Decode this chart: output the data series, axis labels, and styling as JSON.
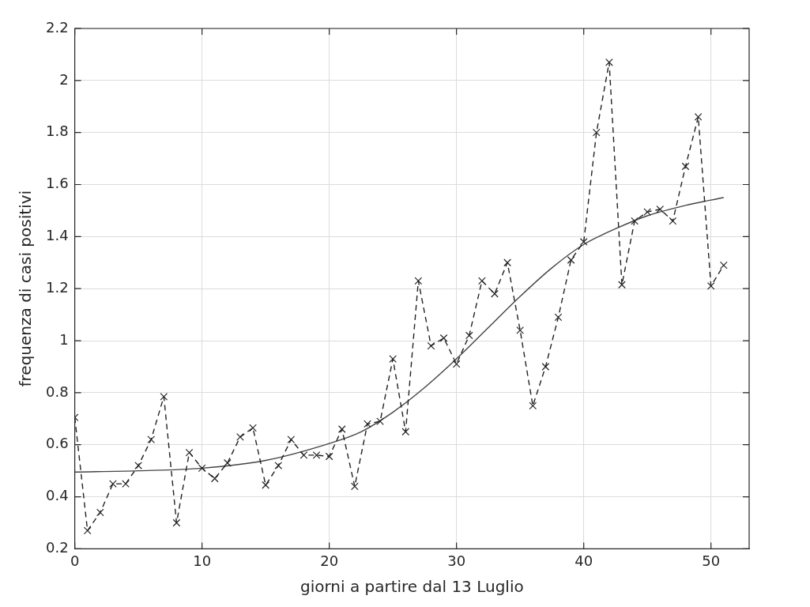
{
  "chart_data": {
    "type": "line",
    "xlabel": "giorni a partire dal 13 Luglio",
    "ylabel": "frequenza di casi positivi",
    "xlim": [
      0,
      53
    ],
    "xticks": [
      0,
      10,
      20,
      30,
      40,
      50
    ],
    "ylim": [
      0.2,
      2.2
    ],
    "yticks": [
      0.2,
      0.4,
      0.6,
      0.8,
      1,
      1.2,
      1.4,
      1.6,
      1.8,
      2,
      2.2
    ],
    "grid": true,
    "legend": false,
    "series": [
      {
        "color": "#222222",
        "marker": "cross",
        "line_style": "dashed",
        "x": [
          0,
          1,
          2,
          3,
          4,
          5,
          6,
          7,
          8,
          9,
          10,
          11,
          12,
          13,
          14,
          15,
          16,
          17,
          18,
          19,
          20,
          21,
          22,
          23,
          24,
          25,
          26,
          27,
          28,
          29,
          30,
          31,
          32,
          33,
          34,
          35,
          36,
          37,
          38,
          39,
          40,
          41,
          42,
          43,
          44,
          45,
          46,
          47,
          48,
          49,
          50,
          51
        ],
        "values": [
          0.705,
          0.27,
          0.34,
          0.45,
          0.45,
          0.52,
          0.62,
          0.785,
          0.3,
          0.57,
          0.51,
          0.47,
          0.53,
          0.63,
          0.665,
          0.445,
          0.52,
          0.62,
          0.56,
          0.56,
          0.555,
          0.66,
          0.44,
          0.68,
          0.69,
          0.93,
          0.65,
          1.23,
          0.98,
          1.01,
          0.91,
          1.02,
          1.23,
          1.18,
          1.3,
          1.04,
          0.75,
          0.9,
          1.09,
          1.31,
          1.38,
          1.8,
          2.07,
          1.215,
          1.46,
          1.495,
          1.505,
          1.46,
          1.67,
          1.86,
          1.21,
          1.29
        ]
      },
      {
        "color": "#444444",
        "marker": "none",
        "line_style": "solid",
        "x": [
          0,
          5,
          10,
          15,
          20,
          22.5,
          25,
          27.5,
          30,
          32.5,
          35,
          37.5,
          40,
          42.5,
          45,
          48,
          51
        ],
        "values": [
          0.495,
          0.5,
          0.51,
          0.54,
          0.605,
          0.65,
          0.725,
          0.82,
          0.93,
          1.05,
          1.17,
          1.28,
          1.37,
          1.43,
          1.48,
          1.52,
          1.55
        ]
      }
    ]
  }
}
